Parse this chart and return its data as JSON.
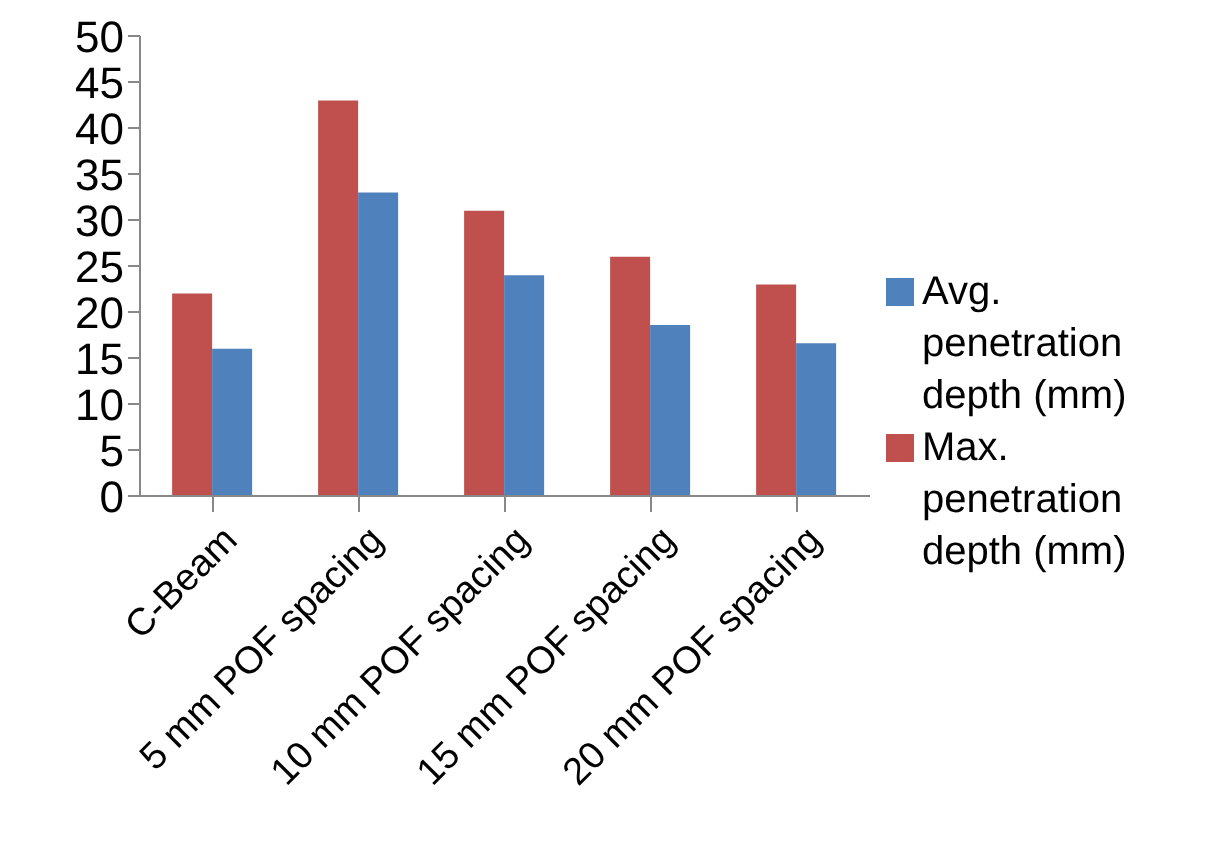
{
  "chart_data": {
    "type": "bar",
    "categories": [
      "C-Beam",
      "5 mm POF spacing",
      "10 mm POF spacing",
      "15 mm POF spacing",
      "20 mm POF spacing"
    ],
    "series": [
      {
        "name": "Max. penetration depth (mm)",
        "color": "#c0504d",
        "values": [
          22,
          43,
          31,
          26,
          23
        ]
      },
      {
        "name": "Avg. penetration depth (mm)",
        "color": "#4f81bd",
        "values": [
          16,
          33,
          24,
          18.6,
          16.6
        ]
      }
    ],
    "ylim": [
      0,
      50
    ],
    "yticks": [
      0,
      5,
      10,
      15,
      20,
      25,
      30,
      35,
      40,
      45,
      50
    ],
    "grid": false,
    "legend": "right"
  }
}
